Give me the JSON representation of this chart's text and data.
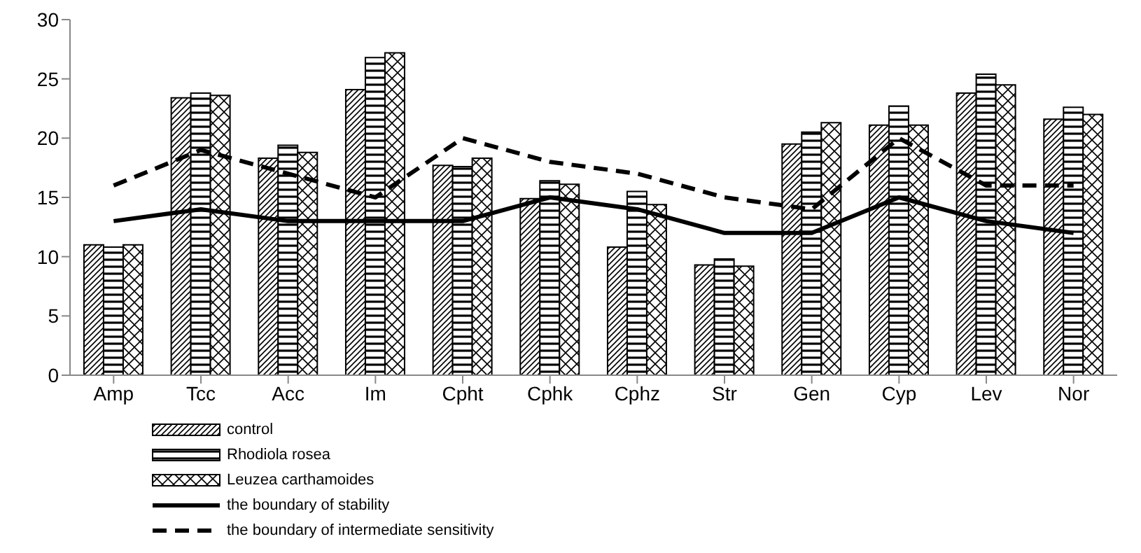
{
  "chart_data": {
    "type": "bar",
    "categories": [
      "Amp",
      "Tcc",
      "Acc",
      "Im",
      "Cpht",
      "Cphk",
      "Cphz",
      "Str",
      "Gen",
      "Cyp",
      "Lev",
      "Nor"
    ],
    "series": [
      {
        "name": "control",
        "color": "#000000",
        "values": [
          11,
          23.4,
          18.3,
          24.1,
          17.7,
          14.9,
          10.8,
          9.3,
          19.5,
          21.1,
          23.8,
          21.6
        ]
      },
      {
        "name": "Rhodiola rosea",
        "color": "#000000",
        "values": [
          10.8,
          23.8,
          19.4,
          26.8,
          17.6,
          16.4,
          15.5,
          9.8,
          20.5,
          22.7,
          25.4,
          22.6
        ]
      },
      {
        "name": "Leuzea carthamoides",
        "color": "#000000",
        "values": [
          11,
          23.6,
          18.8,
          27.2,
          18.3,
          16.1,
          14.4,
          9.2,
          21.3,
          21.1,
          24.5,
          22
        ]
      },
      {
        "name": "the boundary of stability",
        "type": "line",
        "color": "#000000",
        "line_style": "solid",
        "values": [
          13,
          14,
          13,
          13,
          13,
          15,
          14,
          12,
          12,
          15,
          13,
          12
        ]
      },
      {
        "name": "the boundary of intermediate sensitivity",
        "type": "line",
        "color": "#000000",
        "line_style": "dashed",
        "values": [
          16,
          19,
          17,
          15,
          20,
          18,
          17,
          15,
          14,
          20,
          16,
          16
        ]
      }
    ],
    "ylim": [
      0,
      30
    ],
    "yticks": [
      0,
      5,
      10,
      15,
      20,
      25,
      30
    ],
    "grid": false,
    "legend": "bottom",
    "marker": "none"
  }
}
